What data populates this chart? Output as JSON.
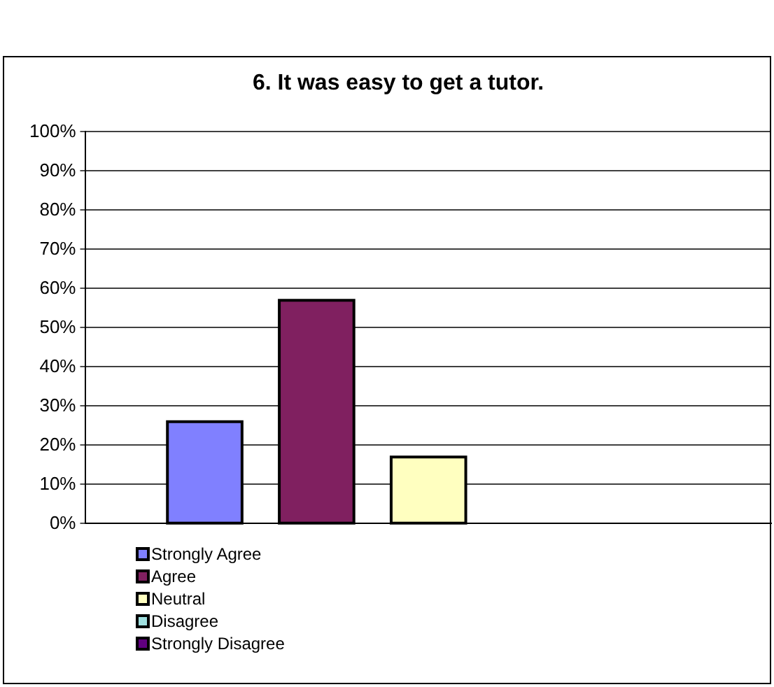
{
  "chart_data": {
    "type": "bar",
    "title": "6. It was easy to get a tutor.",
    "categories": [
      null
    ],
    "series": [
      {
        "name": "Strongly Agree",
        "color": "#8080ff",
        "values": [
          26
        ]
      },
      {
        "name": "Agree",
        "color": "#802060",
        "values": [
          57
        ]
      },
      {
        "name": "Neutral",
        "color": "#ffffc0",
        "values": [
          17
        ]
      },
      {
        "name": "Disagree",
        "color": "#a0e0e0",
        "values": [
          0
        ]
      },
      {
        "name": "Strongly Disagree",
        "color": "#600080",
        "values": [
          0
        ]
      }
    ],
    "ylim": [
      0,
      100
    ],
    "yticks": [
      {
        "value": 0,
        "label": "0%"
      },
      {
        "value": 10,
        "label": "10%"
      },
      {
        "value": 20,
        "label": "20%"
      },
      {
        "value": 30,
        "label": "30%"
      },
      {
        "value": 40,
        "label": "40%"
      },
      {
        "value": 50,
        "label": "50%"
      },
      {
        "value": 60,
        "label": "60%"
      },
      {
        "value": 70,
        "label": "70%"
      },
      {
        "value": 80,
        "label": "80%"
      },
      {
        "value": 90,
        "label": "90%"
      },
      {
        "value": 100,
        "label": "100%"
      }
    ],
    "grid": "y",
    "legend": "bottom"
  }
}
